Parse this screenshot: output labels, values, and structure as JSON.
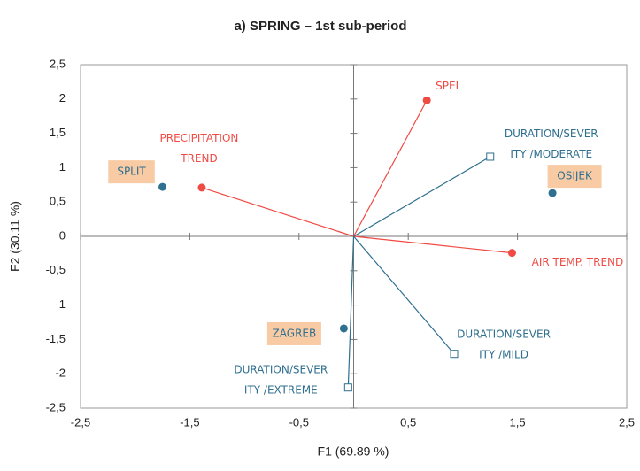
{
  "chart_data": {
    "type": "biplot",
    "title": "a) SPRING – 1st sub-period",
    "x_label": "F1 (69.89 %)",
    "y_label": "F2 (30.11 %)",
    "xlim": [
      -2.5,
      2.5
    ],
    "ylim": [
      -2.5,
      2.5
    ],
    "xticks": [
      {
        "value": -2.5,
        "label": "-2,5"
      },
      {
        "value": -1.5,
        "label": "-1,5"
      },
      {
        "value": -0.5,
        "label": "-0,5"
      },
      {
        "value": 0.5,
        "label": "0,5"
      },
      {
        "value": 1.5,
        "label": "1,5"
      },
      {
        "value": 2.5,
        "label": "2,5"
      }
    ],
    "yticks": [
      {
        "value": 2.5,
        "label": "2,5"
      },
      2,
      {
        "value": 1.5,
        "label": "1,5"
      },
      1,
      {
        "value": 0.5,
        "label": "0,5"
      },
      0,
      {
        "value": -0.5,
        "label": "-0,5"
      },
      -1,
      {
        "value": -1.5,
        "label": "-1,5"
      },
      -2,
      {
        "value": -2.5,
        "label": "-2,5"
      }
    ],
    "series": [
      {
        "color": "#f04a44",
        "marker": "circle",
        "vector": true,
        "points": [
          {
            "label": [
              "SPEI"
            ],
            "x": 0.67,
            "y": 1.98
          },
          {
            "label": [
              "PRECIPITATION",
              "TREND"
            ],
            "x": -1.39,
            "y": 0.71
          },
          {
            "label": [
              "AIR TEMP. TREND"
            ],
            "x": 1.45,
            "y": -0.24
          }
        ]
      },
      {
        "color": "#2f6f8f",
        "marker": "square",
        "vector": true,
        "points": [
          {
            "label": [
              "DURATION/SEVER",
              "ITY /MODERATE"
            ],
            "x": 1.25,
            "y": 1.16
          },
          {
            "label": [
              "DURATION/SEVER",
              "ITY /MILD"
            ],
            "x": 0.92,
            "y": -1.71
          },
          {
            "label": [
              "DURATION/SEVER",
              "ITY /EXTREME"
            ],
            "x": -0.05,
            "y": -2.2
          }
        ]
      },
      {
        "color": "#2f6f8f",
        "marker": "dot",
        "vector": false,
        "label_box": "#f8cba5",
        "points": [
          {
            "label": [
              "SPLIT"
            ],
            "x": -1.75,
            "y": 0.72
          },
          {
            "label": [
              "OSIJEK"
            ],
            "x": 1.82,
            "y": 0.63
          },
          {
            "label": [
              "ZAGREB"
            ],
            "x": -0.09,
            "y": -1.34
          }
        ]
      }
    ]
  }
}
